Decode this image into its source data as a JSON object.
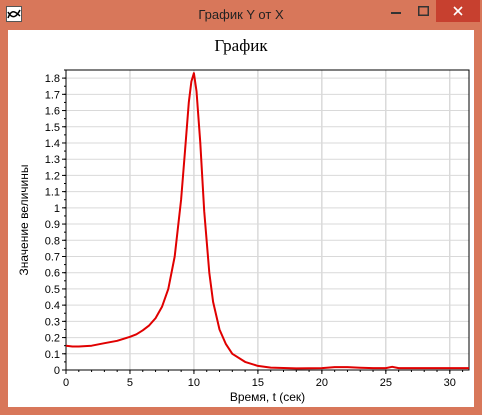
{
  "window": {
    "title": "График Y от X",
    "titlebar_color": "#d8775a",
    "close_color": "#c7402f",
    "icons": {
      "app": "chart-app-icon",
      "minimize": "minimize-icon",
      "maximize": "maximize-icon",
      "close": "close-icon"
    }
  },
  "chart_data": {
    "type": "line",
    "title": "График",
    "xlabel": "Время, t (сек)",
    "ylabel": "Значение величины",
    "xlim": [
      0,
      31.5
    ],
    "ylim": [
      0,
      1.85
    ],
    "x_ticks": [
      0,
      5,
      10,
      15,
      20,
      25,
      30
    ],
    "y_ticks": [
      0,
      0.1,
      0.2,
      0.3,
      0.4,
      0.5,
      0.6,
      0.7,
      0.8,
      0.9,
      1,
      1.1,
      1.2,
      1.3,
      1.4,
      1.5,
      1.6,
      1.7,
      1.8
    ],
    "grid": true,
    "series": [
      {
        "color": "#e00000",
        "x": [
          0,
          0.5,
          1,
          2,
          3,
          4,
          5,
          5.5,
          6,
          6.5,
          7,
          7.5,
          8,
          8.5,
          9,
          9.3,
          9.6,
          9.8,
          10,
          10.2,
          10.5,
          10.8,
          11.2,
          11.5,
          12,
          12.5,
          13,
          14,
          15,
          16,
          18,
          20,
          21,
          22,
          23,
          24,
          25,
          25.5,
          26,
          28,
          30,
          31.5
        ],
        "y": [
          0.15,
          0.145,
          0.145,
          0.15,
          0.165,
          0.18,
          0.205,
          0.22,
          0.245,
          0.275,
          0.32,
          0.39,
          0.5,
          0.7,
          1.05,
          1.35,
          1.65,
          1.78,
          1.83,
          1.72,
          1.4,
          0.98,
          0.6,
          0.42,
          0.25,
          0.16,
          0.1,
          0.05,
          0.025,
          0.015,
          0.01,
          0.012,
          0.018,
          0.018,
          0.014,
          0.012,
          0.012,
          0.02,
          0.012,
          0.012,
          0.012,
          0.012
        ]
      }
    ]
  }
}
